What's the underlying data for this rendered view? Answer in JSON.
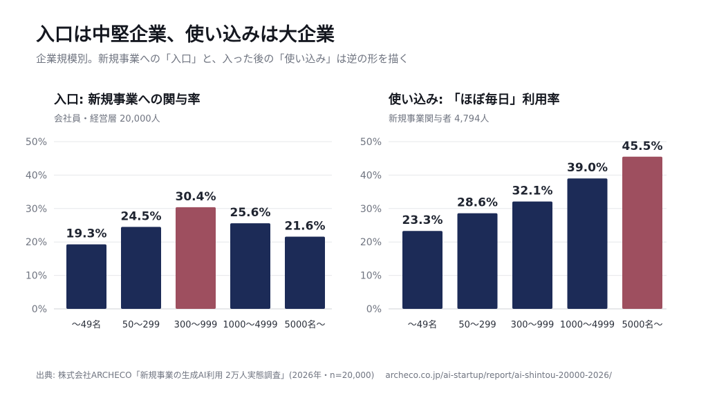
{
  "header": {
    "title": "入口は中堅企業、使い込みは大企業",
    "subtitle": "企業規模別。新規事業への「入口」と、入った後の「使い込み」は逆の形を描く"
  },
  "footer": {
    "source": "出典: 株式会社ARCHECO「新規事業の生成AI利用 2万人実態調査」(2026年・n=20,000)",
    "url": "archeco.co.jp/ai-startup/report/ai-shintou-20000-2026/"
  },
  "colors": {
    "bar": "#1c2b57",
    "highlight": "#9e4f5f",
    "grid": "#e6e7ea",
    "axis_text": "#6f7480",
    "value_text": "#1f2430"
  },
  "chart_data": [
    {
      "type": "bar",
      "title": "入口: 新規事業への関与率",
      "subtitle": "会社員・経営層 20,000人",
      "categories": [
        "〜49名",
        "50〜299",
        "300〜999",
        "1000〜4999",
        "5000名〜"
      ],
      "values": [
        19.3,
        24.5,
        30.4,
        25.6,
        21.6
      ],
      "value_labels": [
        "19.3%",
        "24.5%",
        "30.4%",
        "25.6%",
        "21.6%"
      ],
      "highlight_index": 2,
      "ylim": [
        0,
        50
      ],
      "yticks": [
        0,
        10,
        20,
        30,
        40,
        50
      ],
      "ytick_labels": [
        "0%",
        "10%",
        "20%",
        "30%",
        "40%",
        "50%"
      ],
      "grid": true
    },
    {
      "type": "bar",
      "title": "使い込み: 「ほぼ毎日」利用率",
      "subtitle": "新規事業関与者 4,794人",
      "categories": [
        "〜49名",
        "50〜299",
        "300〜999",
        "1000〜4999",
        "5000名〜"
      ],
      "values": [
        23.3,
        28.6,
        32.1,
        39.0,
        45.5
      ],
      "value_labels": [
        "23.3%",
        "28.6%",
        "32.1%",
        "39.0%",
        "45.5%"
      ],
      "highlight_index": 4,
      "ylim": [
        0,
        50
      ],
      "yticks": [
        0,
        10,
        20,
        30,
        40,
        50
      ],
      "ytick_labels": [
        "0%",
        "10%",
        "20%",
        "30%",
        "40%",
        "50%"
      ],
      "grid": true
    }
  ]
}
